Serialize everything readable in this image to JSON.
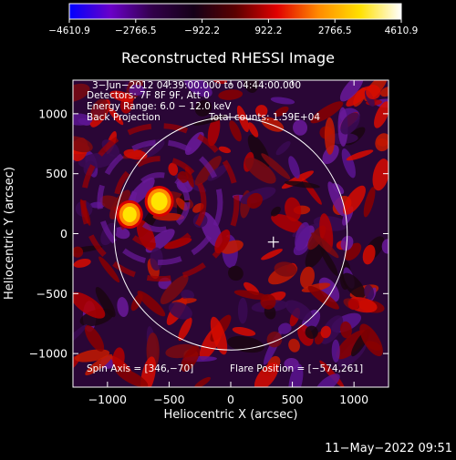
{
  "chart_data": {
    "type": "heatmap",
    "title": "Reconstructed RHESSI Image",
    "xlabel": "Heliocentric X (arcsec)",
    "ylabel": "Heliocentric Y (arcsec)",
    "xlim": [
      -1280,
      1280
    ],
    "ylim": [
      -1280,
      1280
    ],
    "x_ticks": [
      -1000,
      -500,
      0,
      500,
      1000
    ],
    "y_ticks": [
      -1000,
      -500,
      0,
      500,
      1000
    ],
    "x_tick_labels": [
      "−1000",
      "−500",
      "0",
      "500",
      "1000"
    ],
    "y_tick_labels": [
      "−1000",
      "−500",
      "0",
      "500",
      "1000"
    ],
    "colorbar": {
      "range": [
        -4610.9,
        4610.9
      ],
      "ticks": [
        -4610.9,
        -2766.5,
        -922.2,
        922.2,
        2766.5,
        4610.9
      ],
      "tick_labels": [
        "−4610.9",
        "−2766.5",
        "−922.2",
        "922.2",
        "2766.5",
        "4610.9"
      ],
      "colors": [
        "#0000ff",
        "#6a00c8",
        "#32004a",
        "#150018",
        "#5a0000",
        "#e00000",
        "#ff8a00",
        "#ffe000",
        "#ffffff"
      ]
    },
    "annotations": [
      "3−Jun−2012 04:39:00.000 to 04:44:00.000",
      "Detectors: 7F 8F 9F, Att 0",
      "Energy Range: 6.0 − 12.0 keV",
      "Back Projection",
      "Total counts: 1.59E+04"
    ],
    "spin_axis_label": "Spin Axis = [346,−70]",
    "flare_position_label": "Flare Position = [−574,261]",
    "spin_axis": [
      346,
      -70
    ],
    "flare_position": [
      -574,
      261
    ],
    "solar_limb_radius": 945,
    "sources": [
      {
        "x": -580,
        "y": 270,
        "peak": 4610.9
      },
      {
        "x": -820,
        "y": 160,
        "peak": 3900
      }
    ]
  },
  "footer": {
    "timestamp": "11−May−2022 09:51"
  }
}
